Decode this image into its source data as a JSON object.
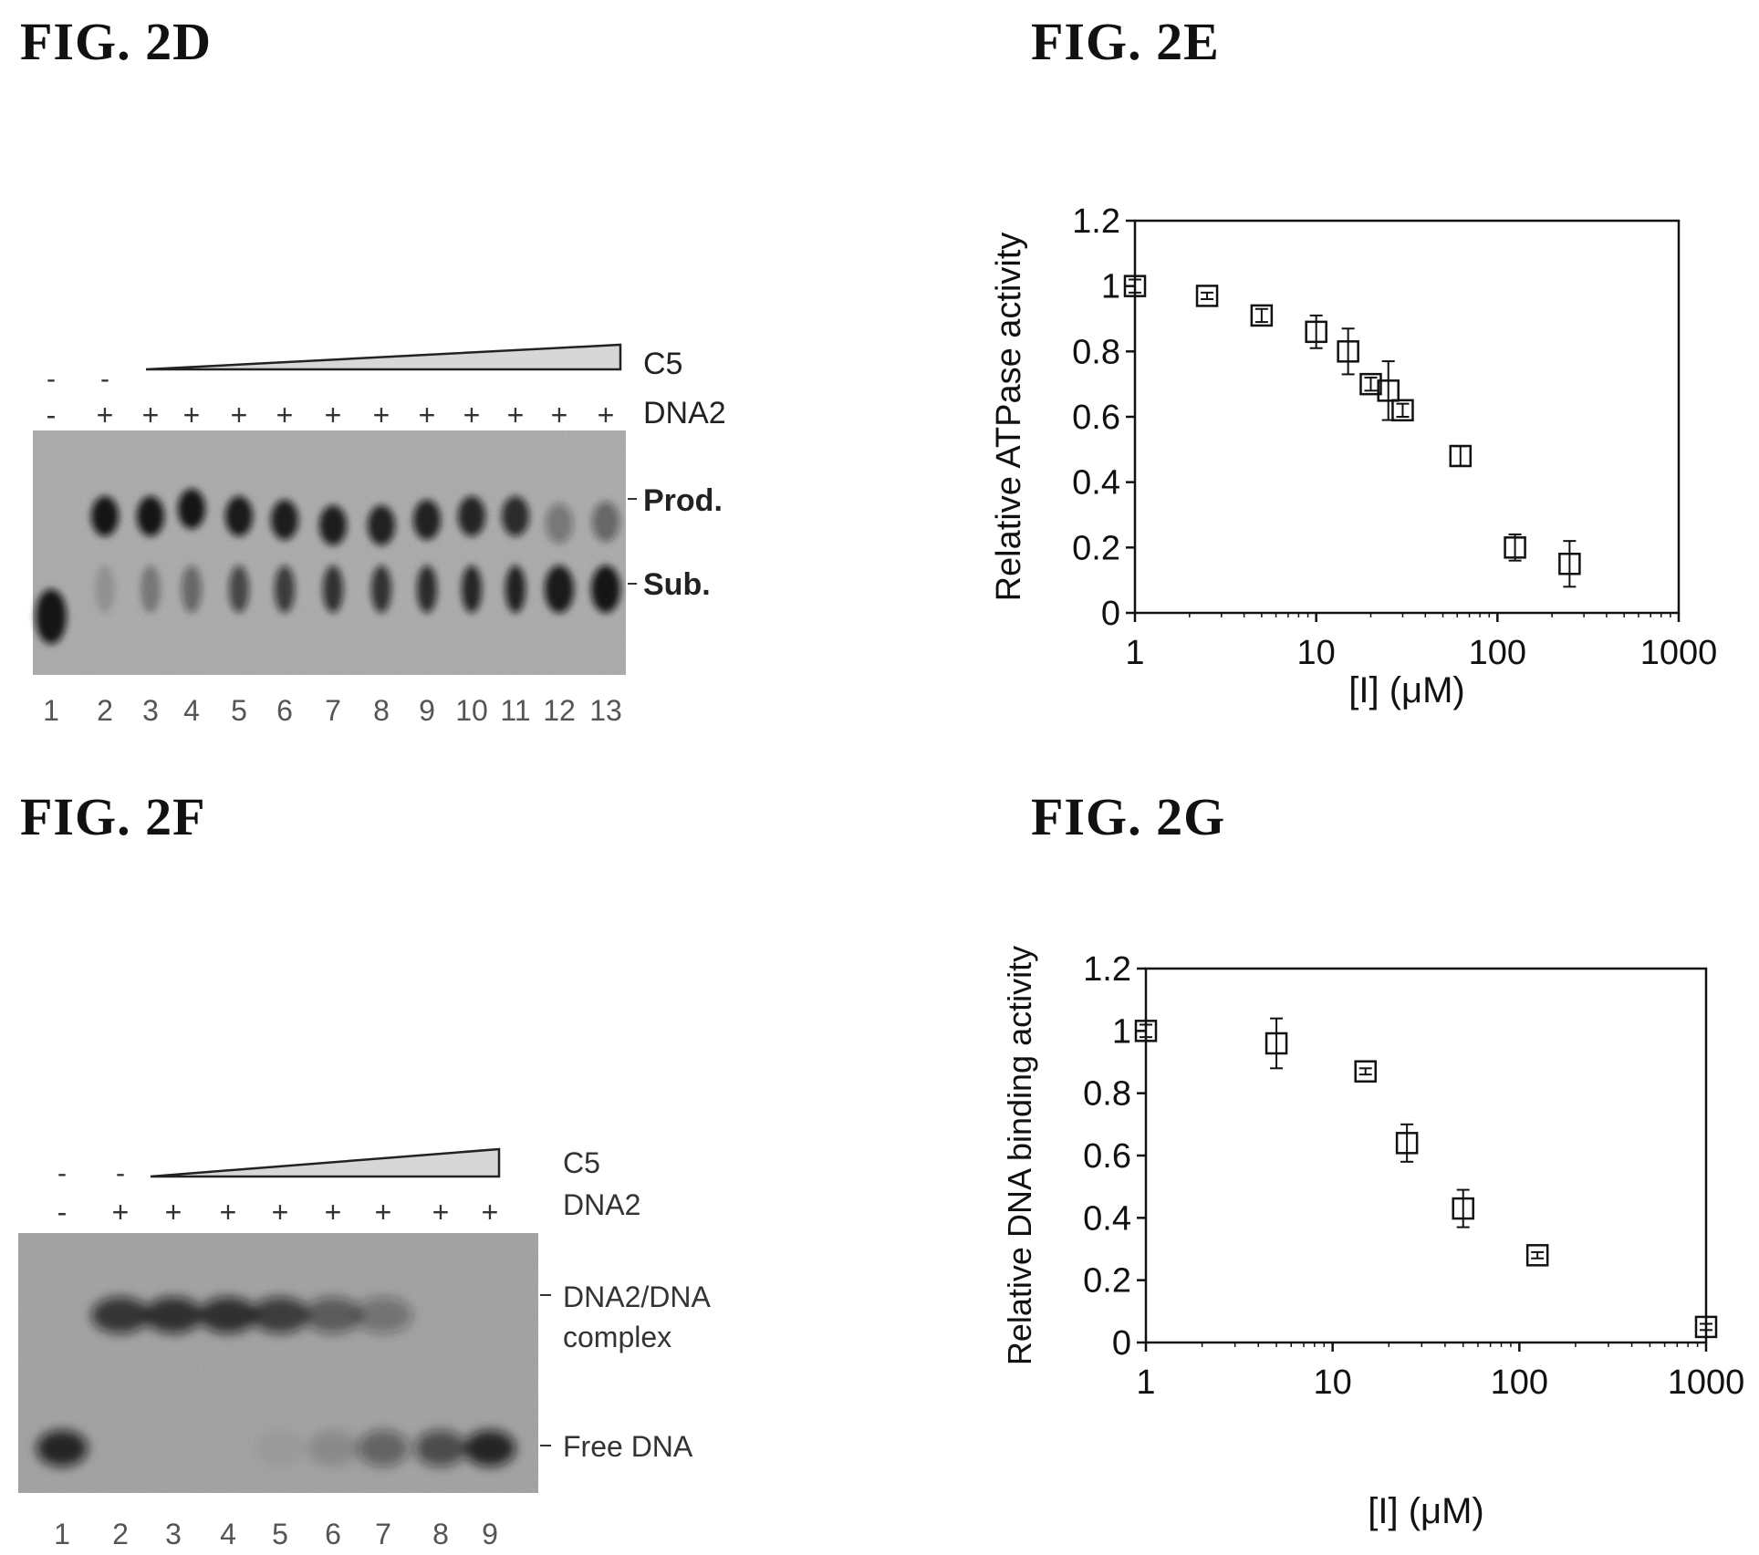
{
  "figures": {
    "fig2d": {
      "title": "FIG. 2D",
      "gel": {
        "c5_label": "C5",
        "dna2_label": "DNA2",
        "c5_row": [
          "-",
          "-"
        ],
        "dna2_row": [
          "-",
          "+",
          "+",
          "+",
          "+",
          "+",
          "+",
          "+",
          "+",
          "+",
          "+",
          "+",
          "+"
        ],
        "band_labels": [
          "Prod.",
          "Sub."
        ],
        "lanes": [
          "1",
          "2",
          "3",
          "4",
          "5",
          "6",
          "7",
          "8",
          "9",
          "10",
          "11",
          "12",
          "13"
        ]
      }
    },
    "fig2e": {
      "title": "FIG. 2E",
      "chart_data": {
        "type": "scatter",
        "xscale": "log",
        "xlabel": "[I] (μM)",
        "ylabel": "Relative ATPase activity",
        "xlim": [
          1,
          1000
        ],
        "ylim": [
          0,
          1.2
        ],
        "xticks": [
          "1",
          "10",
          "100",
          "1000"
        ],
        "yticks": [
          "0",
          "0.2",
          "0.4",
          "0.6",
          "0.8",
          "1",
          "1.2"
        ],
        "grid": false,
        "marker": "open-square",
        "x": [
          1,
          2.5,
          5,
          10,
          15,
          20,
          25,
          30,
          62.5,
          125,
          250
        ],
        "y": [
          1.0,
          0.97,
          0.91,
          0.86,
          0.8,
          0.7,
          0.68,
          0.62,
          0.48,
          0.2,
          0.15
        ],
        "yerr": [
          0.02,
          0.01,
          0.02,
          0.05,
          0.07,
          0.02,
          0.09,
          0.02,
          0.03,
          0.04,
          0.07
        ]
      }
    },
    "fig2f": {
      "title": "FIG. 2F",
      "gel": {
        "c5_label": "C5",
        "dna2_label": "DNA2",
        "c5_row": [
          "-",
          "-"
        ],
        "dna2_row": [
          "-",
          "+",
          "+",
          "+",
          "+",
          "+",
          "+",
          "+",
          "+"
        ],
        "band_labels": [
          "DNA2/DNA",
          "complex",
          "Free DNA"
        ],
        "lanes": [
          "1",
          "2",
          "3",
          "4",
          "5",
          "6",
          "7",
          "8",
          "9"
        ]
      }
    },
    "fig2g": {
      "title": "FIG. 2G",
      "chart_data": {
        "type": "scatter",
        "xscale": "log",
        "xlabel": "[I] (μM)",
        "ylabel": "Relative DNA binding activity",
        "xlim": [
          1,
          1000
        ],
        "ylim": [
          0,
          1.2
        ],
        "xticks": [
          "1",
          "10",
          "100",
          "1000"
        ],
        "yticks": [
          "0",
          "0.2",
          "0.4",
          "0.6",
          "0.8",
          "1",
          "1.2"
        ],
        "grid": false,
        "marker": "open-square",
        "x": [
          1,
          5,
          15,
          25,
          50,
          125,
          1000
        ],
        "y": [
          1.0,
          0.96,
          0.87,
          0.64,
          0.43,
          0.28,
          0.05
        ],
        "yerr": [
          0.02,
          0.08,
          0.01,
          0.06,
          0.06,
          0.01,
          0.01
        ]
      }
    }
  }
}
